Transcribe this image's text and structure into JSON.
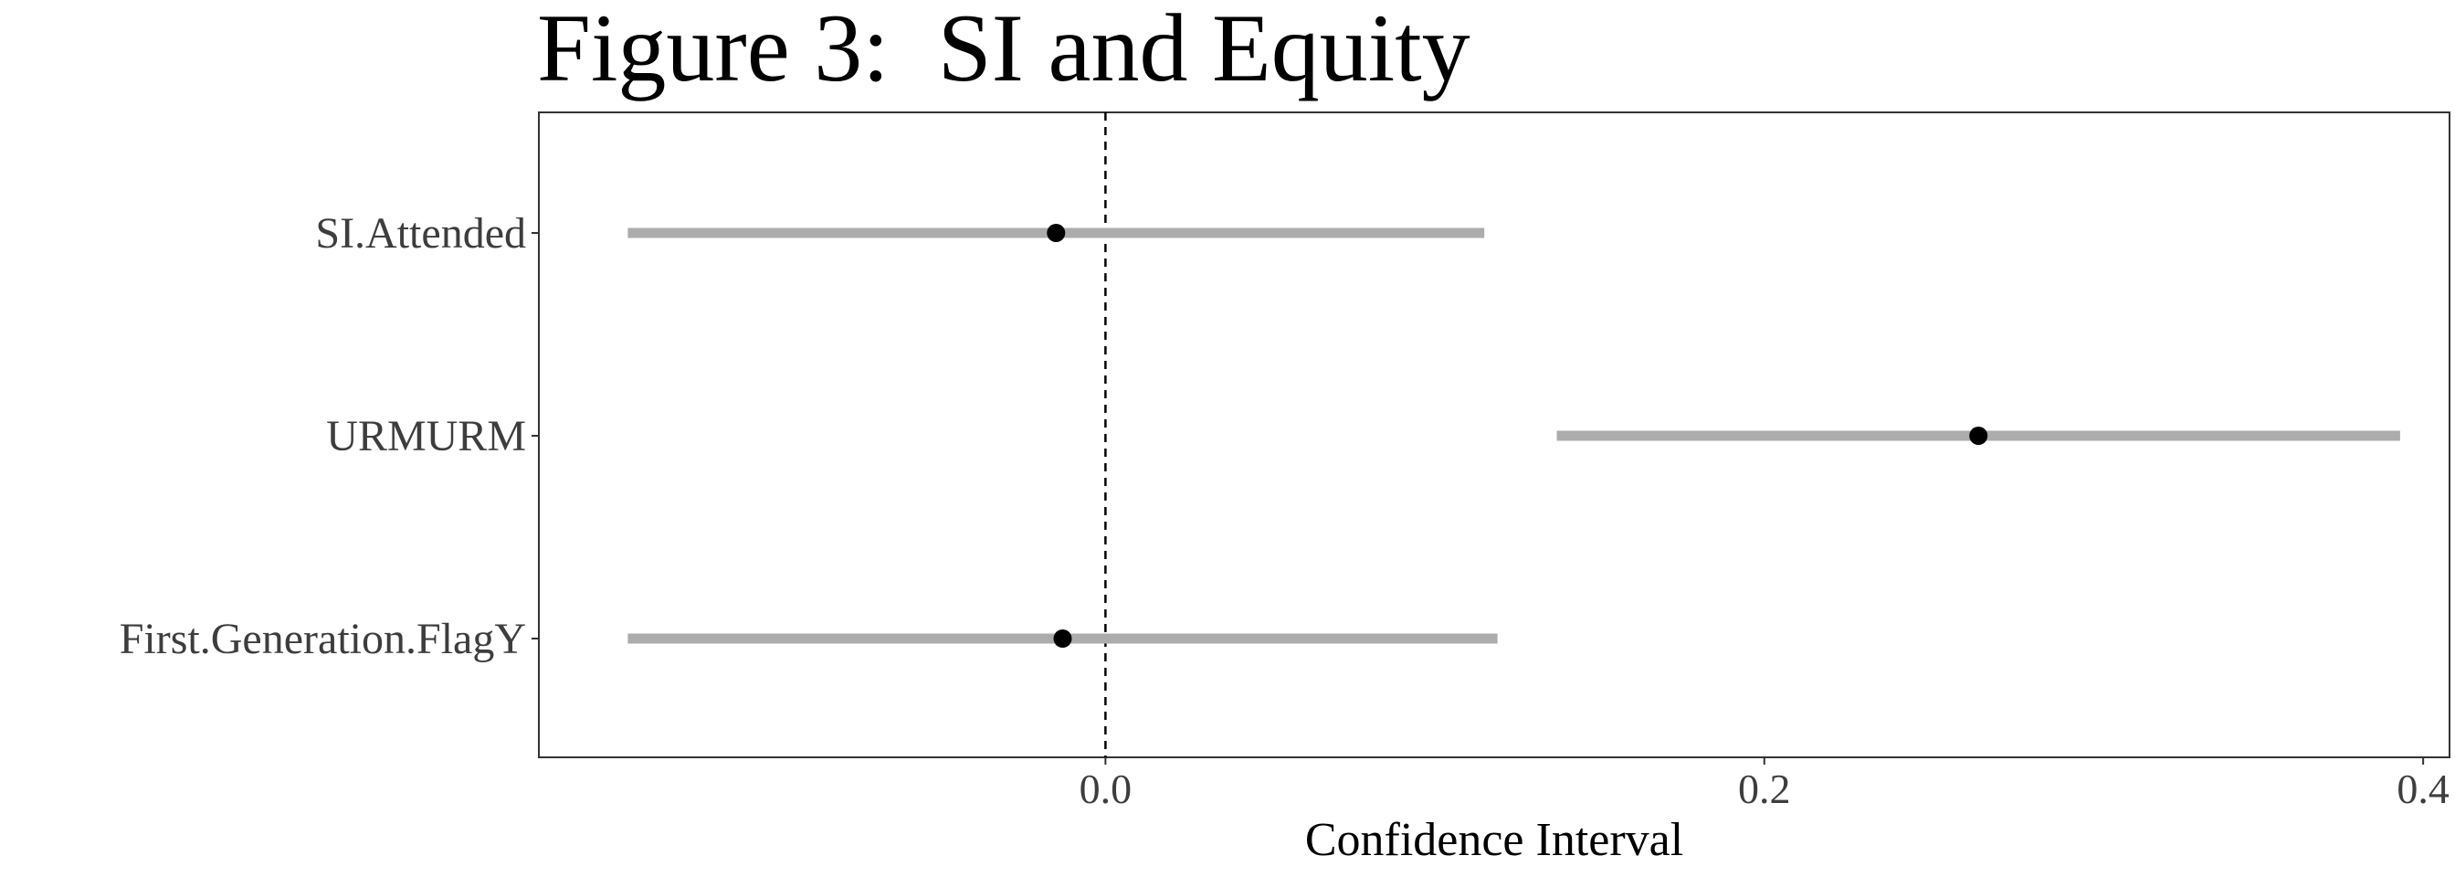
{
  "chart_data": {
    "type": "scatter",
    "title": "Figure 3:  SI and Equity",
    "xlabel": "Confidence Interval",
    "ylabel": "",
    "categories": [
      "SI.Attended",
      "URMURM",
      "First.Generation.FlagY"
    ],
    "points": [
      {
        "category": "SI.Attended",
        "estimate": -0.015,
        "low": -0.145,
        "high": 0.115
      },
      {
        "category": "URMURM",
        "estimate": 0.265,
        "low": 0.137,
        "high": 0.393
      },
      {
        "category": "First.Generation.FlagY",
        "estimate": -0.013,
        "low": -0.145,
        "high": 0.119
      }
    ],
    "xlim": [
      -0.172,
      0.408
    ],
    "xticks": [
      0.0,
      0.2,
      0.4
    ],
    "xtick_labels": [
      "0.0",
      "0.2",
      "0.4"
    ],
    "reference_line": 0,
    "grid": false,
    "legend": "none",
    "colors": {
      "interval": "#acacac",
      "point": "#000000",
      "axis_text": "#3d3d3d",
      "frame": "#333333",
      "reference": "#000000"
    }
  }
}
